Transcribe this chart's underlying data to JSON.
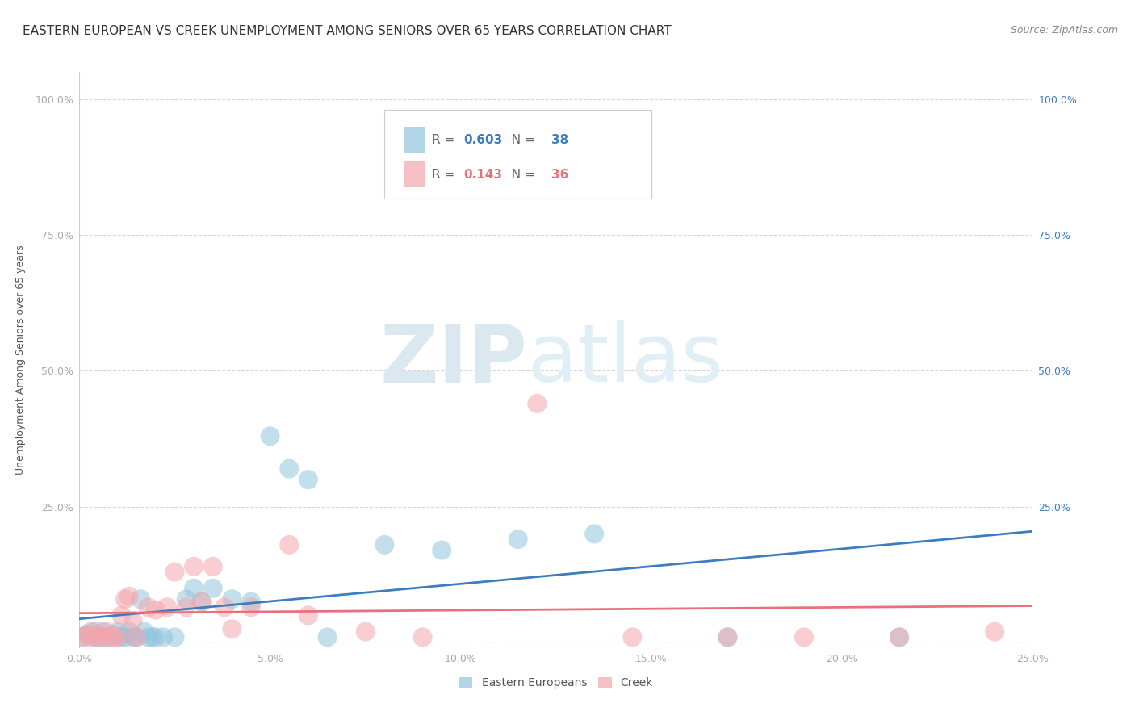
{
  "title": "EASTERN EUROPEAN VS CREEK UNEMPLOYMENT AMONG SENIORS OVER 65 YEARS CORRELATION CHART",
  "source": "Source: ZipAtlas.com",
  "ylabel": "Unemployment Among Seniors over 65 years",
  "xlim": [
    0.0,
    0.25
  ],
  "ylim": [
    -0.01,
    1.05
  ],
  "xticks": [
    0.0,
    0.05,
    0.1,
    0.15,
    0.2,
    0.25
  ],
  "yticks": [
    0.0,
    0.25,
    0.5,
    0.75,
    1.0
  ],
  "xticklabels": [
    "0.0%",
    "5.0%",
    "10.0%",
    "15.0%",
    "20.0%",
    "25.0%"
  ],
  "yticklabels_left": [
    "",
    "25.0%",
    "50.0%",
    "75.0%",
    "100.0%"
  ],
  "yticklabels_right": [
    "",
    "25.0%",
    "50.0%",
    "75.0%",
    "100.0%"
  ],
  "eastern_european_x": [
    0.001,
    0.002,
    0.003,
    0.004,
    0.005,
    0.006,
    0.007,
    0.008,
    0.009,
    0.01,
    0.011,
    0.012,
    0.013,
    0.014,
    0.015,
    0.016,
    0.017,
    0.018,
    0.019,
    0.02,
    0.022,
    0.025,
    0.028,
    0.03,
    0.032,
    0.035,
    0.04,
    0.045,
    0.05,
    0.055,
    0.06,
    0.065,
    0.08,
    0.095,
    0.115,
    0.135,
    0.17,
    0.215
  ],
  "eastern_european_y": [
    0.01,
    0.015,
    0.02,
    0.01,
    0.01,
    0.02,
    0.01,
    0.01,
    0.015,
    0.02,
    0.01,
    0.01,
    0.02,
    0.01,
    0.01,
    0.08,
    0.02,
    0.01,
    0.01,
    0.01,
    0.01,
    0.01,
    0.08,
    0.1,
    0.075,
    0.1,
    0.08,
    0.075,
    0.38,
    0.32,
    0.3,
    0.01,
    0.18,
    0.17,
    0.19,
    0.2,
    0.01,
    0.01
  ],
  "creek_x": [
    0.001,
    0.002,
    0.003,
    0.004,
    0.005,
    0.006,
    0.007,
    0.008,
    0.009,
    0.01,
    0.011,
    0.012,
    0.013,
    0.014,
    0.015,
    0.018,
    0.02,
    0.023,
    0.025,
    0.028,
    0.03,
    0.032,
    0.035,
    0.038,
    0.04,
    0.045,
    0.055,
    0.06,
    0.075,
    0.09,
    0.12,
    0.145,
    0.17,
    0.19,
    0.215,
    0.24
  ],
  "creek_y": [
    0.01,
    0.015,
    0.01,
    0.02,
    0.01,
    0.01,
    0.02,
    0.01,
    0.01,
    0.01,
    0.05,
    0.08,
    0.085,
    0.04,
    0.01,
    0.065,
    0.06,
    0.065,
    0.13,
    0.065,
    0.14,
    0.075,
    0.14,
    0.065,
    0.025,
    0.065,
    0.18,
    0.05,
    0.02,
    0.01,
    0.44,
    0.01,
    0.01,
    0.01,
    0.01,
    0.02
  ],
  "ee_R": 0.603,
  "ee_N": 38,
  "creek_R": 0.143,
  "creek_N": 36,
  "ee_color": "#92c5de",
  "creek_color": "#f4a6ad",
  "ee_line_color": "#3b7dbf",
  "creek_line_color": "#e8707a",
  "background_color": "#ffffff",
  "watermark_zip": "ZIP",
  "watermark_atlas": "atlas",
  "watermark_color": "#dce8f0",
  "title_fontsize": 11,
  "axis_label_fontsize": 9,
  "tick_fontsize": 9,
  "legend_fontsize": 11,
  "source_fontsize": 9
}
